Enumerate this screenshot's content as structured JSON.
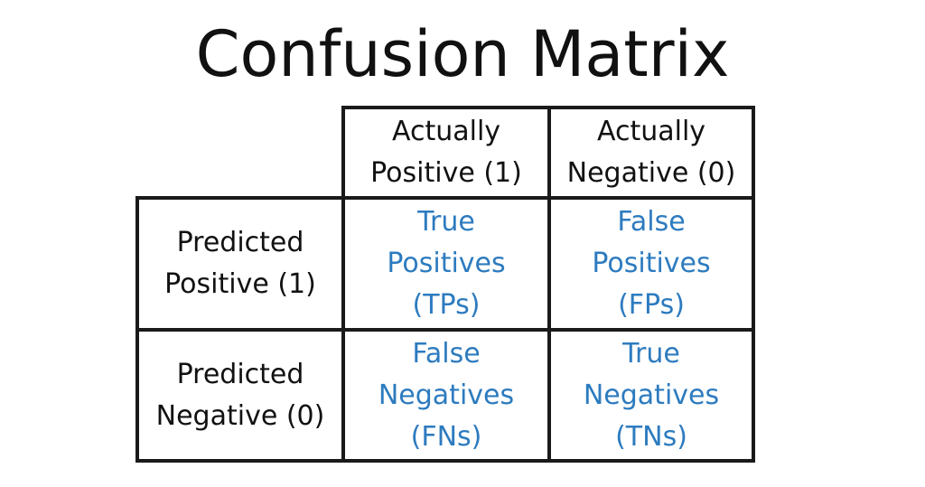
{
  "title": "Confusion Matrix",
  "colors": {
    "text": "#111111",
    "accent": "#2d7bbf",
    "border": "#1a1a1a",
    "background": "#ffffff"
  },
  "columns": [
    {
      "line1": "Actually",
      "line2": "Positive (1)"
    },
    {
      "line1": "Actually",
      "line2": "Negative (0)"
    }
  ],
  "rows": [
    {
      "line1": "Predicted",
      "line2": "Positive (1)"
    },
    {
      "line1": "Predicted",
      "line2": "Negative (0)"
    }
  ],
  "cells": {
    "tp": {
      "line1": "True",
      "line2": "Positives",
      "line3": "(TPs)"
    },
    "fp": {
      "line1": "False",
      "line2": "Positives",
      "line3": "(FPs)"
    },
    "fn": {
      "line1": "False",
      "line2": "Negatives",
      "line3": "(FNs)"
    },
    "tn": {
      "line1": "True",
      "line2": "Negatives",
      "line3": "(TNs)"
    }
  }
}
